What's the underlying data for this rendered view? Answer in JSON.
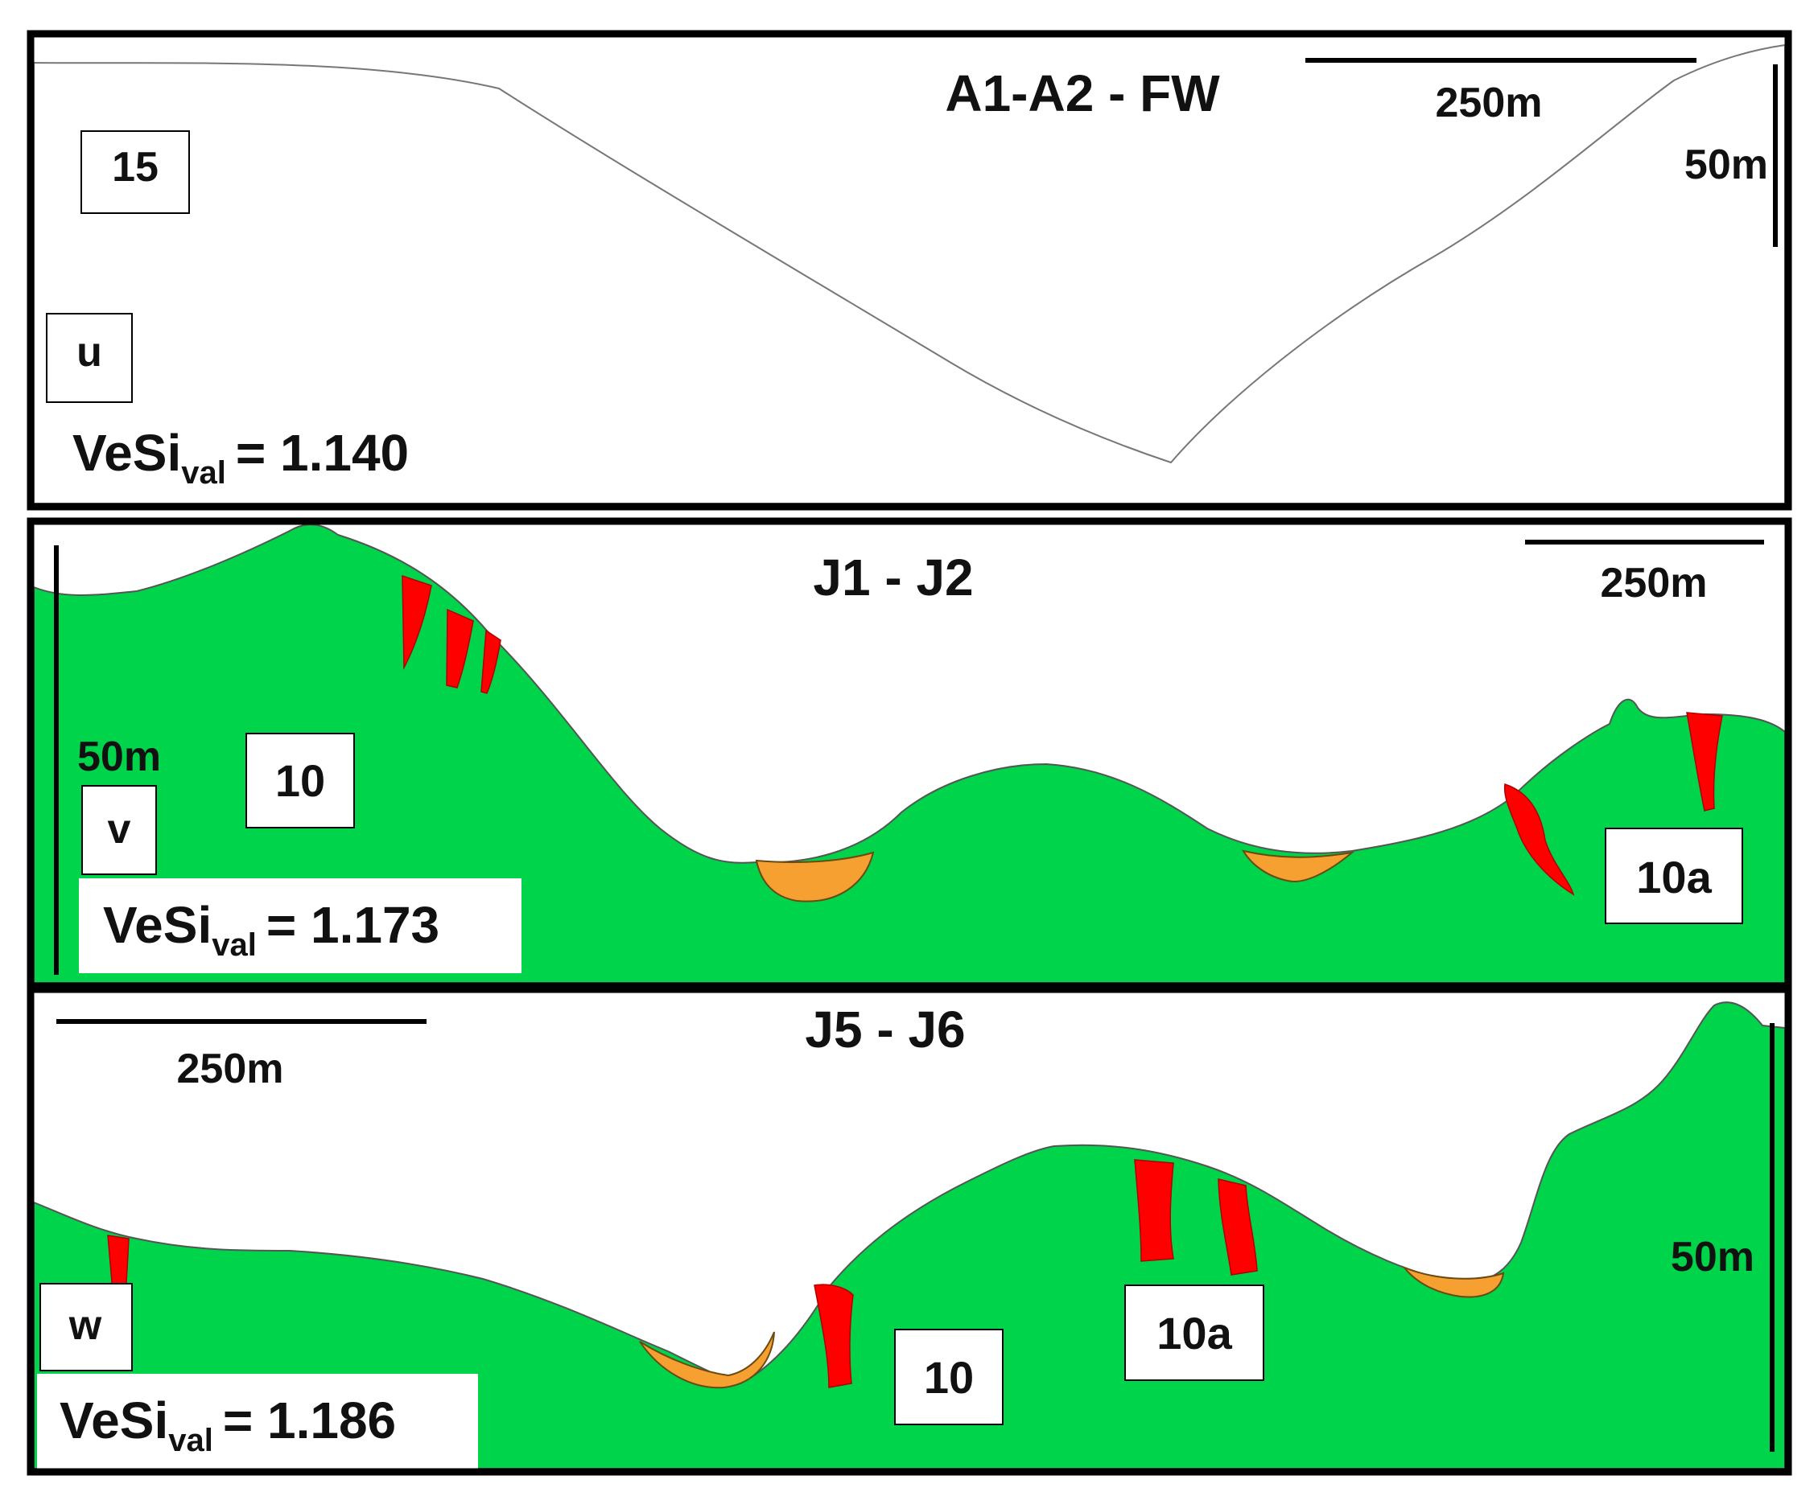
{
  "panels": [
    {
      "id": "u",
      "title": "A1-A2 - FW",
      "panel_letter": "u",
      "unit_label": "15",
      "scale_horizontal": "250m",
      "scale_vertical": "50m",
      "index_name": "VeSi",
      "index_subscript": "val",
      "index_value": "= 1.140",
      "fill": "checkerboard"
    },
    {
      "id": "v",
      "title": "J1 - J2",
      "panel_letter": "v",
      "unit_labels": [
        "10",
        "10a"
      ],
      "scale_horizontal": "250m",
      "scale_vertical": "50m",
      "index_name": "VeSi",
      "index_subscript": "val",
      "index_value": "= 1.173",
      "fill": "#00d44a"
    },
    {
      "id": "w",
      "title": "J5 - J6",
      "panel_letter": "w",
      "unit_labels": [
        "10",
        "10a"
      ],
      "scale_horizontal": "250m",
      "scale_vertical": "50m",
      "index_name": "VeSi",
      "index_subscript": "val",
      "index_value": "= 1.186",
      "fill": "#00d44a"
    }
  ],
  "colors": {
    "terrain_green": "#00d44a",
    "vein_red": "#ff0000",
    "fan_orange": "#f5a030",
    "check_light": "#efefef",
    "check_dark": "#c6c6c6"
  }
}
